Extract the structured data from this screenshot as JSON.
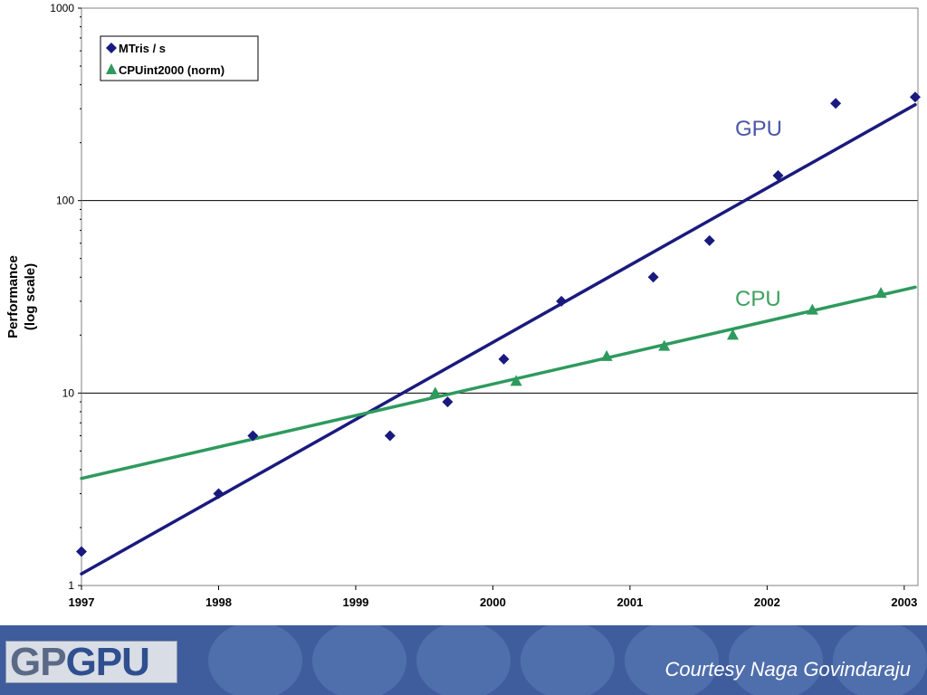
{
  "chart_data": {
    "type": "scatter",
    "xlabel": "",
    "ylabel_lines": [
      "Performance",
      "(log scale)"
    ],
    "y_scale": "log",
    "ylim": [
      1,
      1000
    ],
    "xlim": [
      1997,
      2003.1
    ],
    "x_ticks": [
      "1997",
      "1998",
      "1999",
      "2000",
      "2001",
      "2002",
      "2003"
    ],
    "y_ticks": [
      "1",
      "10",
      "100",
      "1000"
    ],
    "grid": "horizontal major lines",
    "legend_position": "top-left",
    "series": [
      {
        "name": "MTris / s",
        "marker": "diamond",
        "color": "#1a1a7e",
        "points": [
          [
            1997.0,
            1.5
          ],
          [
            1998.0,
            3
          ],
          [
            1998.25,
            6
          ],
          [
            1999.25,
            6
          ],
          [
            1999.67,
            9
          ],
          [
            2000.08,
            15
          ],
          [
            2000.5,
            30
          ],
          [
            2001.17,
            40
          ],
          [
            2001.58,
            62
          ],
          [
            2002.08,
            135
          ],
          [
            2002.5,
            320
          ],
          [
            2003.08,
            345
          ]
        ],
        "trend": {
          "label": "GPU",
          "from": [
            1997.0,
            1.15
          ],
          "to": [
            2003.08,
            315
          ]
        }
      },
      {
        "name": "CPUint2000 (norm)",
        "marker": "triangle",
        "color": "#2e9a5e",
        "points": [
          [
            1999.58,
            10
          ],
          [
            2000.17,
            11.5
          ],
          [
            2000.83,
            15.5
          ],
          [
            2001.25,
            17.5
          ],
          [
            2001.75,
            20
          ],
          [
            2002.33,
            27
          ],
          [
            2002.83,
            33
          ]
        ],
        "trend": {
          "label": "CPU",
          "from": [
            1997.0,
            3.6
          ],
          "to": [
            2003.08,
            35.5
          ]
        }
      }
    ]
  },
  "footer": {
    "logo_part1": "GP",
    "logo_part2": "GPU",
    "credit": "Courtesy Naga Govindaraju"
  },
  "colors": {
    "footer_bg": "#3f5d9c",
    "gpu": "#1a1a7e",
    "cpu": "#2e9a5e",
    "gpu_label": "#4a55a8",
    "cpu_label": "#3ea05e"
  }
}
